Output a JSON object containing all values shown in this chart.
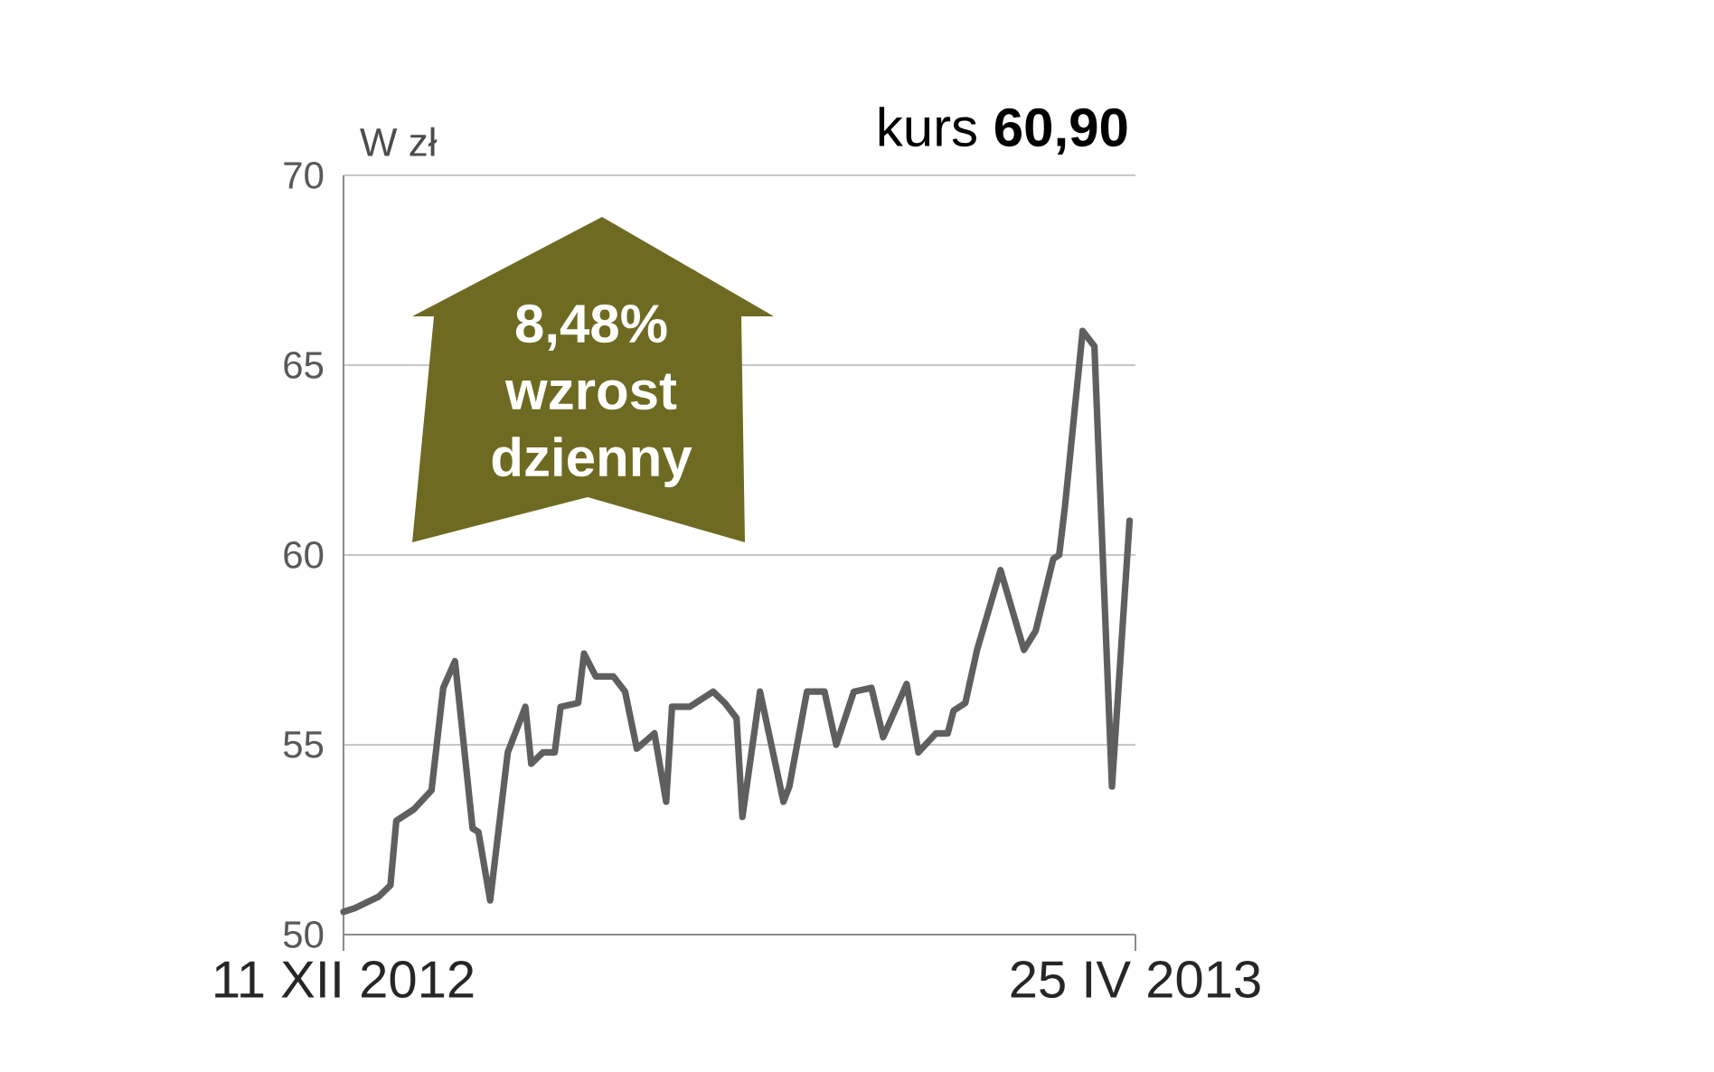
{
  "chart_data": {
    "type": "line",
    "title": "kurs **60,90**",
    "ylabel": "W zł",
    "annotations": [
      "8,48% wzrost dzienny"
    ],
    "x": [
      "2012-12-11",
      "2012-12-13",
      "2012-12-17",
      "2012-12-19",
      "2012-12-20",
      "2012-12-23",
      "2012-12-26",
      "2012-12-28",
      "2012-12-30",
      "2013-01-02",
      "2013-01-03",
      "2013-01-05",
      "2013-01-08",
      "2013-01-11",
      "2013-01-12",
      "2013-01-14",
      "2013-01-16",
      "2013-01-17",
      "2013-01-20",
      "2013-01-21",
      "2013-01-23",
      "2013-01-26",
      "2013-01-28",
      "2013-01-30",
      "2013-02-02",
      "2013-02-04",
      "2013-02-05",
      "2013-02-08",
      "2013-02-12",
      "2013-02-14",
      "2013-02-16",
      "2013-02-17",
      "2013-02-20",
      "2013-02-24",
      "2013-02-25",
      "2013-02-28",
      "2013-03-03",
      "2013-03-05",
      "2013-03-08",
      "2013-03-11",
      "2013-03-13",
      "2013-03-17",
      "2013-03-19",
      "2013-03-22",
      "2013-03-24",
      "2013-03-25",
      "2013-03-27",
      "2013-03-29",
      "2013-04-02",
      "2013-04-06",
      "2013-04-08",
      "2013-04-11",
      "2013-04-12",
      "2013-04-13",
      "2013-04-16",
      "2013-04-18",
      "2013-04-21",
      "2013-04-24"
    ],
    "values": [
      50.6,
      50.7,
      51.0,
      51.3,
      53.0,
      53.3,
      53.8,
      56.5,
      57.2,
      52.8,
      52.7,
      50.9,
      54.8,
      56.0,
      54.5,
      54.8,
      54.8,
      56.0,
      56.1,
      57.4,
      56.8,
      56.8,
      56.4,
      54.9,
      55.3,
      53.5,
      56.0,
      56.0,
      56.4,
      56.1,
      55.7,
      53.1,
      56.4,
      53.5,
      53.9,
      56.4,
      56.4,
      55.0,
      56.4,
      56.5,
      55.2,
      56.6,
      54.8,
      55.3,
      55.3,
      55.9,
      56.1,
      57.5,
      59.6,
      57.5,
      58.0,
      59.9,
      60.0,
      61.3,
      65.9,
      65.5,
      53.9,
      60.9
    ],
    "color": "#5f5f5f",
    "xlim": [
      "2012-12-11",
      "2013-04-25"
    ],
    "xticks": [
      {
        "value": "2012-12-11",
        "label": "11 XII 2012"
      },
      {
        "value": "2013-04-25",
        "label": "25 IV 2013"
      }
    ],
    "ylim": [
      50,
      70
    ],
    "yticks": [
      50,
      55,
      60,
      65,
      70
    ],
    "grid": "y",
    "marker": "none",
    "line_style": "solid"
  }
}
